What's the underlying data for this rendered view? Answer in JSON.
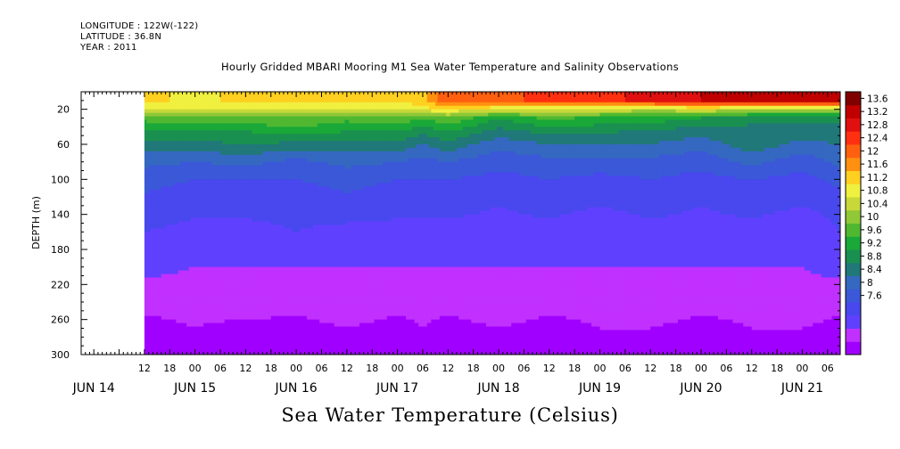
{
  "header": {
    "longitude": "LONGITUDE : 122W(-122)",
    "latitude": "LATITUDE : 36.8N",
    "year": "YEAR : 2011",
    "title": "Hourly Gridded MBARI Mooring M1 Sea Water Temperature and Salinity Observations"
  },
  "chart_data": {
    "type": "heatmap",
    "title": "Hourly Gridded MBARI Mooring M1 Sea Water Temperature and Salinity Observations",
    "xlabel": "Sea Water Temperature (Celsius)",
    "ylabel": "DEPTH (m)",
    "x_hour_ticks": [
      "12",
      "18",
      "00",
      "06",
      "12",
      "18",
      "00",
      "06",
      "12",
      "18",
      "00",
      "06",
      "12",
      "18",
      "00",
      "06",
      "12",
      "18",
      "00",
      "06",
      "12",
      "18",
      "00",
      "06",
      "12",
      "18",
      "00",
      "06"
    ],
    "x_day_labels": [
      {
        "label": "JUN 14",
        "day": 14.0
      },
      {
        "label": "JUN 15",
        "day": 15.0
      },
      {
        "label": "JUN 16",
        "day": 16.0
      },
      {
        "label": "JUN 17",
        "day": 17.0
      },
      {
        "label": "JUN 18",
        "day": 18.0
      },
      {
        "label": "JUN 19",
        "day": 19.0
      },
      {
        "label": "JUN 20",
        "day": 20.0
      },
      {
        "label": "JUN 21",
        "day": 21.0
      }
    ],
    "xlim": [
      "JUN 13 21:00",
      "JUN 21 09:00"
    ],
    "ylim": [
      300,
      0
    ],
    "y_ticks": [
      20,
      60,
      100,
      140,
      180,
      220,
      260,
      300
    ],
    "colorbar": {
      "levels": [
        7.6,
        8,
        8.4,
        8.8,
        9.2,
        9.6,
        10,
        10.4,
        10.8,
        11.2,
        11.6,
        12,
        12.4,
        12.8,
        13.2,
        13.6
      ],
      "labels": [
        "13.6",
        "13.2",
        "12.8",
        "12.4",
        "12",
        "11.6",
        "11.2",
        "10.8",
        "10.4",
        "10",
        "9.6",
        "9.2",
        "8.8",
        "8.4",
        "8",
        "7.6"
      ],
      "colors": [
        "#a000ff",
        "#c030ff",
        "#6040ff",
        "#4848ee",
        "#3a58d8",
        "#3568c0",
        "#207878",
        "#1a9050",
        "#1aa838",
        "#50b830",
        "#90c838",
        "#c8d838",
        "#f0f040",
        "#ffd020",
        "#ff9010",
        "#ff6010",
        "#ff3010",
        "#e01010",
        "#c00000",
        "#800000"
      ]
    },
    "depth_levels": [
      10,
      20,
      30,
      45,
      60,
      80,
      100,
      130,
      160,
      200,
      240,
      270,
      300
    ],
    "times": [
      "JUN 13 21:00",
      "JUN 14 12:00",
      "JUN 15 00:00",
      "JUN 15 12:00",
      "JUN 16 00:00",
      "JUN 16 12:00",
      "JUN 17 00:00",
      "JUN 17 06:00",
      "JUN 17 12:00",
      "JUN 18 00:00",
      "JUN 18 12:00",
      "JUN 19 00:00",
      "JUN 19 12:00",
      "JUN 20 00:00",
      "JUN 20 12:00",
      "JUN 21 00:00",
      "JUN 21 09:00"
    ],
    "values": [
      [
        null,
        11.6,
        11.4,
        11.6,
        11.5,
        11.6,
        11.5,
        11.7,
        12.4,
        12.2,
        12.6,
        12.6,
        12.8,
        13.0,
        13.0,
        13.0,
        13.2
      ],
      [
        null,
        11.2,
        11.2,
        11.2,
        11.2,
        11.3,
        11.2,
        11.4,
        11.4,
        11.3,
        11.2,
        11.2,
        11.0,
        11.2,
        11.0,
        10.8,
        10.8
      ],
      [
        null,
        10.4,
        10.6,
        10.5,
        10.6,
        10.4,
        10.6,
        10.3,
        10.6,
        10.0,
        10.4,
        10.2,
        10.2,
        10.0,
        9.8,
        9.8,
        9.8
      ],
      [
        null,
        10.0,
        10.0,
        10.0,
        10.2,
        10.0,
        10.0,
        9.8,
        10.0,
        9.6,
        9.8,
        9.8,
        9.6,
        9.6,
        9.6,
        9.6,
        9.6
      ],
      [
        null,
        9.6,
        9.6,
        9.7,
        9.6,
        9.6,
        9.6,
        9.4,
        9.6,
        9.2,
        9.4,
        9.4,
        9.4,
        9.2,
        9.6,
        9.3,
        9.4
      ],
      [
        null,
        9.2,
        9.1,
        9.2,
        9.0,
        9.2,
        9.1,
        9.0,
        9.1,
        8.9,
        9.0,
        9.0,
        9.0,
        8.9,
        9.2,
        8.9,
        9.2
      ],
      [
        null,
        8.9,
        8.8,
        8.8,
        8.8,
        8.9,
        8.8,
        8.8,
        8.8,
        8.7,
        8.8,
        8.7,
        8.8,
        8.7,
        8.8,
        8.7,
        8.9
      ],
      [
        null,
        8.7,
        8.6,
        8.6,
        8.6,
        8.7,
        8.6,
        8.6,
        8.6,
        8.5,
        8.6,
        8.5,
        8.6,
        8.5,
        8.6,
        8.5,
        8.6
      ],
      [
        null,
        8.5,
        8.4,
        8.4,
        8.5,
        8.4,
        8.4,
        8.4,
        8.4,
        8.4,
        8.4,
        8.3,
        8.4,
        8.4,
        8.4,
        8.3,
        8.5
      ],
      [
        null,
        8.3,
        8.2,
        8.2,
        8.2,
        8.2,
        8.2,
        8.2,
        8.2,
        8.2,
        8.2,
        8.2,
        8.2,
        8.2,
        8.2,
        8.2,
        8.3
      ],
      [
        null,
        8.0,
        8.0,
        8.1,
        8.0,
        8.1,
        8.0,
        8.0,
        8.0,
        8.1,
        8.0,
        8.0,
        8.1,
        8.0,
        8.0,
        8.1,
        8.0
      ],
      [
        null,
        7.8,
        7.9,
        7.8,
        7.8,
        7.9,
        7.8,
        7.9,
        7.8,
        7.9,
        7.8,
        7.9,
        7.9,
        7.8,
        7.9,
        7.9,
        7.8
      ],
      [
        null,
        7.7,
        7.8,
        7.7,
        7.7,
        7.8,
        7.7,
        7.8,
        7.7,
        7.8,
        7.7,
        7.8,
        7.8,
        7.7,
        7.8,
        7.8,
        7.7
      ]
    ]
  }
}
